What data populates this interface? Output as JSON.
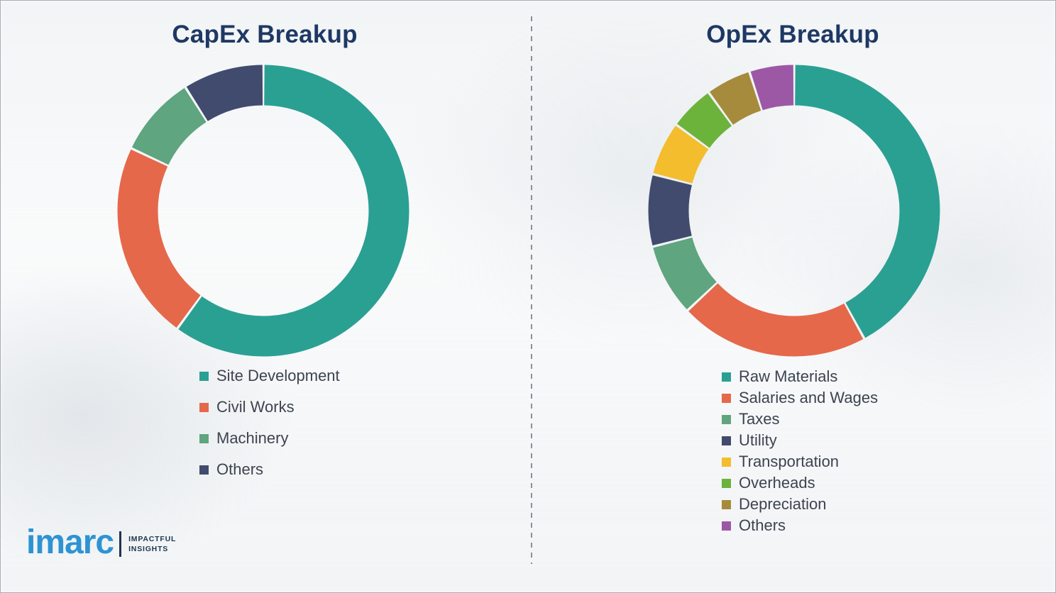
{
  "page": {
    "background_color": "#fafbfc",
    "divider_color": "#8d9196",
    "title_color": "#1f3864",
    "legend_text_color": "#3d4450"
  },
  "logo": {
    "brand": "imarc",
    "brand_color": "#2e93d3",
    "bar_color": "#1f3550",
    "tagline_line1": "IMPACTFUL",
    "tagline_line2": "INSIGHTS",
    "tagline_color": "#1f3550"
  },
  "chart_data": [
    {
      "type": "pie",
      "donut": true,
      "title": "CapEx Breakup",
      "legend_position": "bottom-left",
      "categories": [
        "Site Development",
        "Civil Works",
        "Machinery",
        "Others"
      ],
      "values": [
        60,
        22,
        9,
        9
      ],
      "segments": [
        {
          "label": "Site Development",
          "value": 60,
          "color": "#2aa093"
        },
        {
          "label": "Civil Works",
          "value": 22,
          "color": "#e5684b"
        },
        {
          "label": "Machinery",
          "value": 9,
          "color": "#5fa57f"
        },
        {
          "label": "Others",
          "value": 9,
          "color": "#414b6e"
        }
      ]
    },
    {
      "type": "pie",
      "donut": true,
      "title": "OpEx Breakup",
      "legend_position": "bottom-left",
      "categories": [
        "Raw Materials",
        "Salaries and Wages",
        "Taxes",
        "Utility",
        "Transportation",
        "Overheads",
        "Depreciation",
        "Others"
      ],
      "values": [
        42,
        21,
        8,
        8,
        6,
        5,
        5,
        5
      ],
      "segments": [
        {
          "label": "Raw Materials",
          "value": 42,
          "color": "#2aa093"
        },
        {
          "label": "Salaries and Wages",
          "value": 21,
          "color": "#e5684b"
        },
        {
          "label": "Taxes",
          "value": 8,
          "color": "#5fa57f"
        },
        {
          "label": "Utility",
          "value": 8,
          "color": "#414b6e"
        },
        {
          "label": "Transportation",
          "value": 6,
          "color": "#f3bd2e"
        },
        {
          "label": "Overheads",
          "value": 5,
          "color": "#6cb33c"
        },
        {
          "label": "Depreciation",
          "value": 5,
          "color": "#a68b3c"
        },
        {
          "label": "Others",
          "value": 5,
          "color": "#9d58a5"
        }
      ]
    }
  ]
}
